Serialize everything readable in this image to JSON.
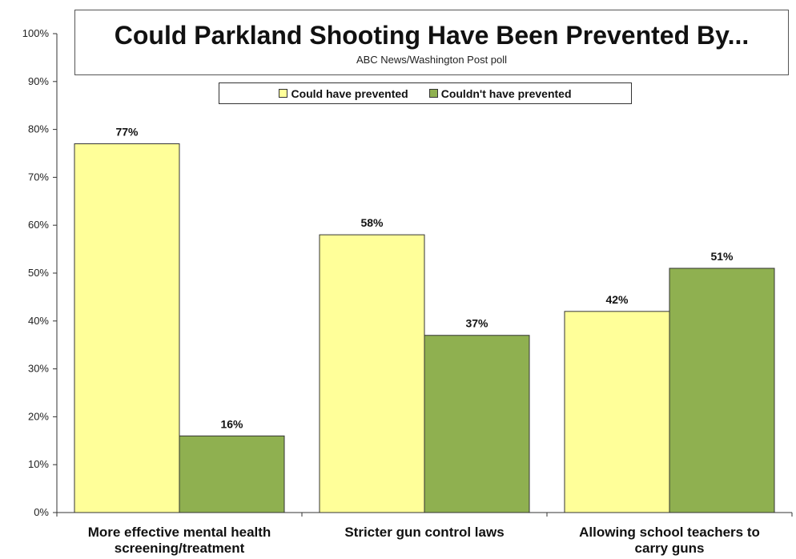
{
  "chart_data": {
    "type": "bar",
    "title": "Could Parkland Shooting Have Been Prevented By...",
    "subtitle": "ABC News/Washington  Post poll",
    "categories": [
      [
        "More effective mental health",
        "screening/treatment"
      ],
      [
        "Stricter gun control laws"
      ],
      [
        "Allowing school teachers to",
        "carry guns"
      ]
    ],
    "series": [
      {
        "name": "Could have prevented",
        "color": "#ffff99",
        "values": [
          77,
          58,
          42
        ],
        "labels": [
          "77%",
          "58%",
          "42%"
        ]
      },
      {
        "name": "Couldn't have prevented",
        "color": "#8fb050",
        "values": [
          16,
          37,
          51
        ],
        "labels": [
          "16%",
          "37%",
          "51%"
        ]
      }
    ],
    "ylim": [
      0,
      100
    ],
    "yticks": [
      "0%",
      "10%",
      "20%",
      "30%",
      "40%",
      "50%",
      "60%",
      "70%",
      "80%",
      "90%",
      "100%"
    ],
    "legend": "top",
    "grid": false
  }
}
